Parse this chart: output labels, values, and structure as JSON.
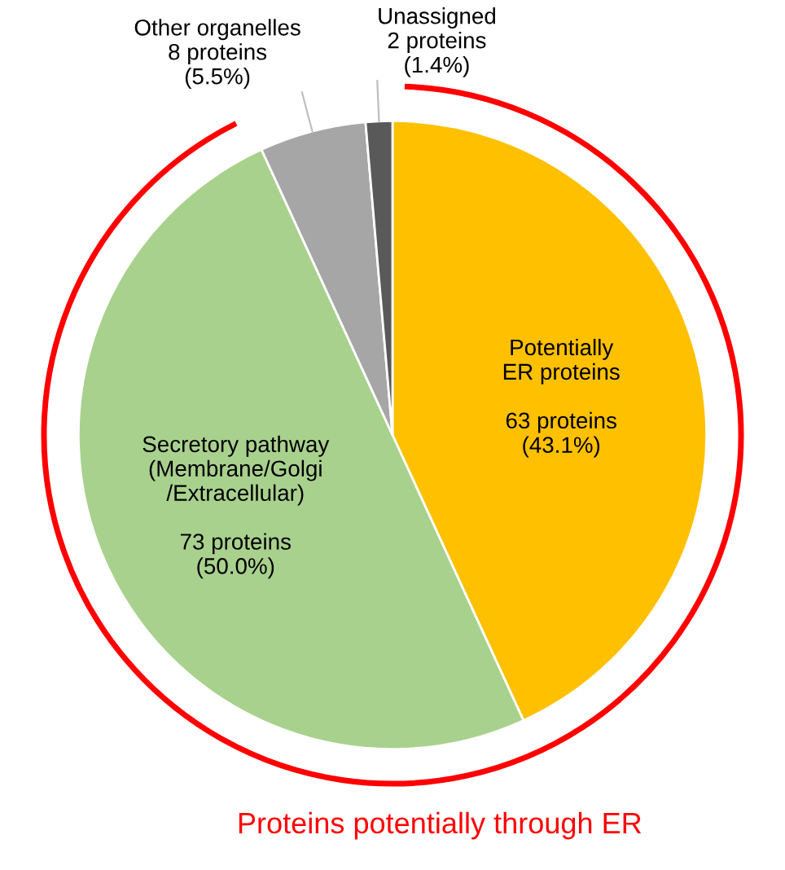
{
  "chart_data": {
    "type": "pie",
    "categories": [
      "Potentially\nER proteins",
      "Secretory pathway\n(Membrane/Golgi\n/Extracellular)",
      "Other organelles",
      "Unassigned"
    ],
    "values": [
      63,
      73,
      8,
      2
    ],
    "value_labels": [
      "63 proteins\n(43.1%)",
      "73 proteins\n(50.0%)",
      "8 proteins\n(5.5%)",
      "2 proteins\n(1.4%)"
    ],
    "colors": [
      "#ffc000",
      "#a9d18e",
      "#a6a6a6",
      "#595959"
    ],
    "annotations": [
      "Proteins potentially through ER"
    ]
  }
}
